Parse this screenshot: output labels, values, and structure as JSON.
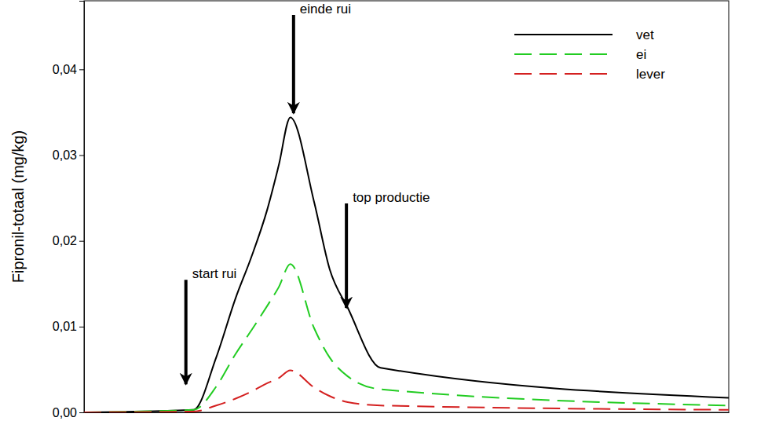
{
  "chart_data": {
    "type": "line",
    "y_label": "Fipronil-totaal (mg/kg)",
    "x": [
      0,
      17,
      20.5,
      23.5,
      25.9,
      28.4,
      30.2,
      32,
      35.7,
      38.1,
      40.9,
      46,
      100
    ],
    "xlim": [
      0,
      100
    ],
    "ylim": [
      0,
      0.048
    ],
    "yticks": [
      {
        "value": 0,
        "label": "0,00"
      },
      {
        "value": 0.01,
        "label": "0,01"
      },
      {
        "value": 0.02,
        "label": "0,02"
      },
      {
        "value": 0.03,
        "label": "0,03"
      },
      {
        "value": 0.04,
        "label": "0,04"
      }
    ],
    "tick_labels": "y",
    "grid": false,
    "legend": "top-right",
    "series": [
      {
        "name": "vet",
        "color": "#000000",
        "line_style": "solid",
        "values": [
          0,
          0.0003,
          0.0064,
          0.0133,
          0.018,
          0.0236,
          0.0288,
          0.0344,
          0.0245,
          0.0167,
          0.0122,
          0.0052,
          0.0017
        ]
      },
      {
        "name": "ei",
        "color": "#22cc22",
        "line_style": "dashed",
        "values": [
          0,
          0.0003,
          0.003,
          0.0068,
          0.0095,
          0.0124,
          0.0146,
          0.0173,
          0.0098,
          0.0064,
          0.0042,
          0.0027,
          0.0008
        ]
      },
      {
        "name": "lever",
        "color": "#d42020",
        "line_style": "dashed",
        "values": [
          0,
          0.0001,
          0.0008,
          0.0016,
          0.0024,
          0.0034,
          0.004,
          0.0049,
          0.0029,
          0.0019,
          0.0012,
          0.0008,
          0.0003
        ]
      }
    ],
    "annotations": [
      {
        "text": "start rui",
        "x": 15.8,
        "y": 0.0031
      },
      {
        "text": "einde rui",
        "x": 32.5,
        "y": 0.0347
      },
      {
        "text": "top productie",
        "x": 40.7,
        "y": 0.012
      }
    ]
  }
}
